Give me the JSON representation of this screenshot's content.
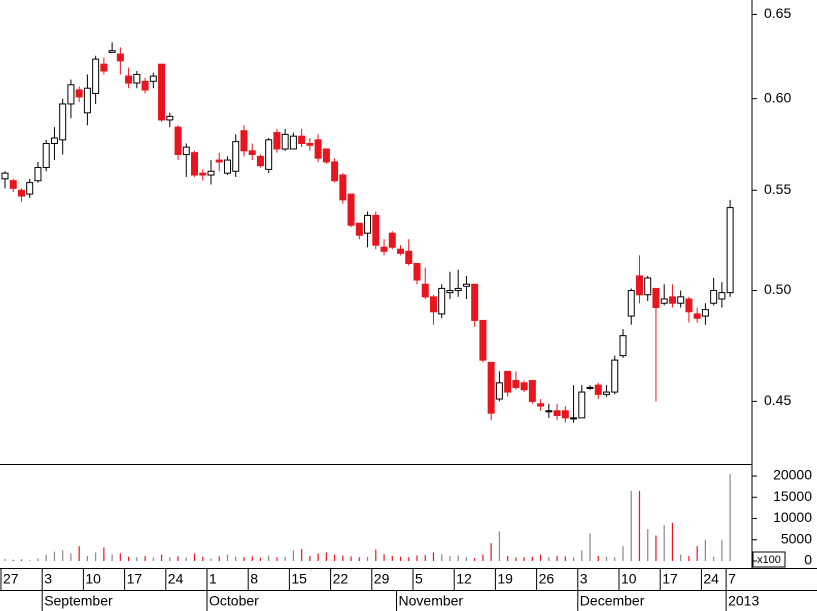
{
  "chart_data": [
    {
      "type": "candlestick",
      "log_scale": true,
      "up_color": "#ffffff",
      "down_color": "#e8141e",
      "ylim": [
        0.424,
        0.659
      ],
      "yticks": [
        0.45,
        {
          "value": 0.5,
          "label": "0.50"
        },
        0.55,
        {
          "value": 0.6,
          "label": "0.60"
        },
        0.65
      ],
      "categories": [
        "27",
        null,
        null,
        null,
        null,
        "3",
        null,
        null,
        null,
        null,
        "10",
        null,
        null,
        null,
        null,
        "17",
        null,
        null,
        null,
        null,
        "24",
        null,
        null,
        null,
        null,
        "1",
        null,
        null,
        null,
        null,
        "8",
        null,
        null,
        null,
        null,
        "15",
        null,
        null,
        null,
        null,
        "22",
        null,
        null,
        null,
        null,
        "29",
        null,
        null,
        null,
        null,
        "5",
        null,
        null,
        null,
        null,
        "12",
        null,
        null,
        null,
        null,
        "19",
        null,
        null,
        null,
        null,
        "26",
        null,
        null,
        null,
        null,
        "3",
        null,
        null,
        null,
        null,
        "10",
        null,
        null,
        null,
        null,
        "17",
        null,
        null,
        null,
        null,
        "24",
        null,
        null,
        "7"
      ],
      "months": [
        null,
        null,
        null,
        null,
        null,
        "September",
        null,
        null,
        null,
        null,
        null,
        null,
        null,
        null,
        null,
        null,
        null,
        null,
        null,
        null,
        null,
        null,
        null,
        null,
        null,
        "October",
        null,
        null,
        null,
        null,
        null,
        null,
        null,
        null,
        null,
        null,
        null,
        null,
        null,
        null,
        null,
        null,
        null,
        null,
        null,
        null,
        null,
        null,
        "November",
        null,
        null,
        null,
        null,
        null,
        null,
        null,
        null,
        null,
        null,
        null,
        null,
        null,
        null,
        null,
        null,
        null,
        null,
        null,
        null,
        null,
        "December",
        null,
        null,
        null,
        null,
        null,
        null,
        null,
        null,
        null,
        null,
        null,
        null,
        null,
        null,
        null,
        null,
        null,
        "2013"
      ],
      "ohlc": [
        [
          0.556,
          0.56,
          0.551,
          0.559
        ],
        [
          0.555,
          0.556,
          0.549,
          0.551
        ],
        [
          0.55,
          0.551,
          0.544,
          0.547
        ],
        [
          0.548,
          0.556,
          0.546,
          0.554
        ],
        [
          0.555,
          0.565,
          0.554,
          0.562
        ],
        [
          0.562,
          0.577,
          0.56,
          0.575
        ],
        [
          0.575,
          0.584,
          0.566,
          0.578
        ],
        [
          0.577,
          0.6,
          0.569,
          0.597
        ],
        [
          0.597,
          0.611,
          0.589,
          0.608
        ],
        [
          0.605,
          0.607,
          0.598,
          0.601
        ],
        [
          0.592,
          0.614,
          0.585,
          0.606
        ],
        [
          0.603,
          0.625,
          0.597,
          0.623
        ],
        [
          0.62,
          0.624,
          0.614,
          0.616
        ],
        [
          0.627,
          0.633,
          0.627,
          0.628
        ],
        [
          0.626,
          0.63,
          0.614,
          0.622
        ],
        [
          0.613,
          0.618,
          0.606,
          0.609
        ],
        [
          0.609,
          0.616,
          0.606,
          0.614
        ],
        [
          0.61,
          0.612,
          0.603,
          0.605
        ],
        [
          0.61,
          0.615,
          0.606,
          0.613
        ],
        [
          0.62,
          0.62,
          0.587,
          0.588
        ],
        [
          0.588,
          0.592,
          0.584,
          0.59
        ],
        [
          0.584,
          0.585,
          0.566,
          0.569
        ],
        [
          0.569,
          0.575,
          0.557,
          0.573
        ],
        [
          0.57,
          0.571,
          0.557,
          0.558
        ],
        [
          0.559,
          0.561,
          0.555,
          0.558
        ],
        [
          0.558,
          0.566,
          0.553,
          0.56
        ],
        [
          0.566,
          0.57,
          0.56,
          0.565
        ],
        [
          0.559,
          0.568,
          0.558,
          0.566
        ],
        [
          0.56,
          0.58,
          0.557,
          0.576
        ],
        [
          0.582,
          0.585,
          0.568,
          0.571
        ],
        [
          0.571,
          0.575,
          0.566,
          0.569
        ],
        [
          0.568,
          0.569,
          0.562,
          0.563
        ],
        [
          0.561,
          0.578,
          0.559,
          0.577
        ],
        [
          0.581,
          0.583,
          0.57,
          0.572
        ],
        [
          0.572,
          0.583,
          0.571,
          0.58
        ],
        [
          0.572,
          0.581,
          0.572,
          0.579
        ],
        [
          0.579,
          0.583,
          0.573,
          0.575
        ],
        [
          0.575,
          0.578,
          0.571,
          0.574
        ],
        [
          0.577,
          0.58,
          0.565,
          0.567
        ],
        [
          0.572,
          0.572,
          0.564,
          0.565
        ],
        [
          0.565,
          0.567,
          0.554,
          0.555
        ],
        [
          0.558,
          0.559,
          0.543,
          0.545
        ],
        [
          0.548,
          0.548,
          0.531,
          0.532
        ],
        [
          0.533,
          0.533,
          0.525,
          0.527
        ],
        [
          0.528,
          0.539,
          0.521,
          0.537
        ],
        [
          0.537,
          0.539,
          0.52,
          0.522
        ],
        [
          0.521,
          0.525,
          0.517,
          0.519
        ],
        [
          0.528,
          0.529,
          0.52,
          0.521
        ],
        [
          0.52,
          0.522,
          0.517,
          0.518
        ],
        [
          0.519,
          0.525,
          0.512,
          0.513
        ],
        [
          0.513,
          0.513,
          0.503,
          0.505
        ],
        [
          0.503,
          0.511,
          0.496,
          0.497
        ],
        [
          0.497,
          0.498,
          0.484,
          0.49
        ],
        [
          0.489,
          0.503,
          0.487,
          0.501
        ],
        [
          0.499,
          0.509,
          0.496,
          0.5
        ],
        [
          0.5,
          0.51,
          0.497,
          0.501
        ],
        [
          0.502,
          0.507,
          0.496,
          0.503
        ],
        [
          0.503,
          0.503,
          0.483,
          0.486
        ],
        [
          0.486,
          0.486,
          0.467,
          0.468
        ],
        [
          0.467,
          0.467,
          0.442,
          0.445
        ],
        [
          0.451,
          0.463,
          0.45,
          0.458
        ],
        [
          0.463,
          0.463,
          0.452,
          0.454
        ],
        [
          0.459,
          0.463,
          0.455,
          0.456
        ],
        [
          0.458,
          0.459,
          0.454,
          0.455
        ],
        [
          0.459,
          0.459,
          0.449,
          0.45
        ],
        [
          0.449,
          0.451,
          0.446,
          0.448
        ],
        [
          0.446,
          0.449,
          0.443,
          0.446
        ],
        [
          0.446,
          0.449,
          0.442,
          0.444
        ],
        [
          0.446,
          0.448,
          0.441,
          0.443
        ],
        [
          0.443,
          0.457,
          0.441,
          0.443
        ],
        [
          0.443,
          0.457,
          0.443,
          0.454
        ],
        [
          0.456,
          0.457,
          0.455,
          0.456
        ],
        [
          0.457,
          0.458,
          0.451,
          0.453
        ],
        [
          0.453,
          0.457,
          0.452,
          0.454
        ],
        [
          0.454,
          0.47,
          0.453,
          0.468
        ],
        [
          0.47,
          0.482,
          0.469,
          0.479
        ],
        [
          0.488,
          0.501,
          0.484,
          0.5
        ],
        [
          0.507,
          0.517,
          0.494,
          0.498
        ],
        [
          0.498,
          0.507,
          0.495,
          0.506
        ],
        [
          0.501,
          0.501,
          0.45,
          0.492
        ],
        [
          0.494,
          0.503,
          0.493,
          0.496
        ],
        [
          0.497,
          0.503,
          0.492,
          0.494
        ],
        [
          0.494,
          0.5,
          0.492,
          0.497
        ],
        [
          0.496,
          0.497,
          0.485,
          0.49
        ],
        [
          0.489,
          0.492,
          0.485,
          0.487
        ],
        [
          0.488,
          0.494,
          0.484,
          0.491
        ],
        [
          0.494,
          0.506,
          0.493,
          0.5
        ],
        [
          0.496,
          0.504,
          0.492,
          0.499
        ],
        [
          0.499,
          0.545,
          0.497,
          0.541
        ]
      ]
    },
    {
      "type": "bar",
      "unit": "x100",
      "ylim": [
        0,
        22600
      ],
      "yticks": [
        0,
        5000,
        10000,
        15000,
        20000
      ],
      "values": [
        500,
        300,
        400,
        200,
        600,
        1500,
        2200,
        2500,
        1800,
        3500,
        1200,
        2000,
        3200,
        1500,
        1800,
        1000,
        900,
        1200,
        800,
        1500,
        900,
        1100,
        800,
        1800,
        1000,
        600,
        1100,
        1500,
        1000,
        900,
        1100,
        800,
        1300,
        900,
        1000,
        2500,
        2800,
        1200,
        1800,
        2000,
        1500,
        1300,
        1100,
        900,
        1000,
        2700,
        1600,
        1200,
        1000,
        900,
        1300,
        1400,
        2000,
        1600,
        1200,
        1300,
        900,
        700,
        1500,
        4200,
        7000,
        1200,
        800,
        900,
        1000,
        1500,
        900,
        1200,
        1100,
        800,
        2500,
        6500,
        1200,
        1000,
        900,
        3500,
        16500,
        16500,
        7500,
        6000,
        8500,
        9000,
        1500,
        1200,
        3500,
        5000,
        1000,
        5000,
        20500
      ]
    }
  ]
}
